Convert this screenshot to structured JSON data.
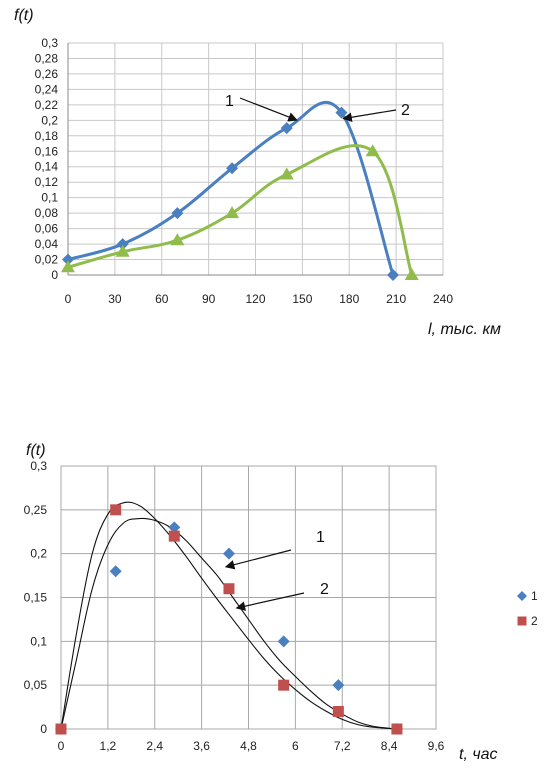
{
  "chart_data": [
    {
      "type": "line",
      "ylabel": "f(t)",
      "xlabel": "l, тыс. км",
      "xlim": [
        0,
        240
      ],
      "ylim": [
        0,
        0.3
      ],
      "x_ticks": [
        "0",
        "30",
        "60",
        "90",
        "120",
        "150",
        "180",
        "210",
        "240"
      ],
      "y_ticks": [
        "0",
        "0,02",
        "0,04",
        "0,06",
        "0,08",
        "0,1",
        "0,12",
        "0,14",
        "0,16",
        "0,18",
        "0,2",
        "0,22",
        "0,24",
        "0,26",
        "0,28",
        "0,3"
      ],
      "grid": true,
      "series": [
        {
          "name": "1",
          "color": "#4a7fc0",
          "marker": "diamond",
          "points": [
            [
              0,
              0.02
            ],
            [
              35,
              0.04
            ],
            [
              70,
              0.08
            ],
            [
              105,
              0.138
            ],
            [
              140,
              0.19
            ],
            [
              175,
              0.21
            ],
            [
              208,
              0
            ]
          ]
        },
        {
          "name": "2",
          "color": "#8fbc4b",
          "marker": "triangle",
          "points": [
            [
              0,
              0.01
            ],
            [
              35,
              0.03
            ],
            [
              70,
              0.045
            ],
            [
              105,
              0.08
            ],
            [
              140,
              0.13
            ],
            [
              195,
              0.16
            ],
            [
              220,
              0
            ]
          ]
        }
      ],
      "annotations": [
        {
          "text": "1",
          "series": 0
        },
        {
          "text": "2",
          "series": 1
        }
      ]
    },
    {
      "type": "scatter",
      "ylabel": "f(t)",
      "xlabel": "t, час",
      "xlim": [
        0,
        9.6
      ],
      "ylim": [
        0,
        0.3
      ],
      "x_ticks": [
        "0",
        "1,2",
        "2,4",
        "3,6",
        "4,8",
        "6",
        "7,2",
        "8,4",
        "9,6"
      ],
      "y_ticks": [
        "0",
        "0,05",
        "0,1",
        "0,15",
        "0,2",
        "0,25",
        "0,3"
      ],
      "grid": true,
      "series": [
        {
          "name": "1",
          "color": "#4a7fc0",
          "marker": "diamond",
          "points": [
            [
              0,
              0
            ],
            [
              1.4,
              0.18
            ],
            [
              2.9,
              0.23
            ],
            [
              4.3,
              0.2
            ],
            [
              5.7,
              0.1
            ],
            [
              7.1,
              0.05
            ],
            [
              8.6,
              0
            ]
          ]
        },
        {
          "name": "2",
          "color": "#c0504d",
          "marker": "square",
          "points": [
            [
              0,
              0
            ],
            [
              1.4,
              0.25
            ],
            [
              2.9,
              0.22
            ],
            [
              4.3,
              0.16
            ],
            [
              5.7,
              0.05
            ],
            [
              7.1,
              0.02
            ],
            [
              8.6,
              0
            ]
          ]
        }
      ],
      "fit_curves": [
        {
          "points": [
            [
              0,
              0
            ],
            [
              0.4,
              0.08
            ],
            [
              0.8,
              0.16
            ],
            [
              1.2,
              0.21
            ],
            [
              1.6,
              0.235
            ],
            [
              2.0,
              0.24
            ],
            [
              2.4,
              0.238
            ],
            [
              2.8,
              0.23
            ],
            [
              3.2,
              0.215
            ],
            [
              3.6,
              0.195
            ],
            [
              4.0,
              0.175
            ],
            [
              4.4,
              0.15
            ],
            [
              4.8,
              0.125
            ],
            [
              5.2,
              0.1
            ],
            [
              5.6,
              0.078
            ],
            [
              6.0,
              0.06
            ],
            [
              6.4,
              0.043
            ],
            [
              6.8,
              0.028
            ],
            [
              7.2,
              0.017
            ],
            [
              7.6,
              0.008
            ],
            [
              8.0,
              0.003
            ],
            [
              8.6,
              0
            ]
          ]
        },
        {
          "points": [
            [
              0,
              0
            ],
            [
              0.4,
              0.11
            ],
            [
              0.8,
              0.2
            ],
            [
              1.2,
              0.245
            ],
            [
              1.6,
              0.258
            ],
            [
              2.0,
              0.255
            ],
            [
              2.4,
              0.24
            ],
            [
              2.8,
              0.22
            ],
            [
              3.2,
              0.197
            ],
            [
              3.6,
              0.172
            ],
            [
              4.0,
              0.148
            ],
            [
              4.4,
              0.125
            ],
            [
              4.8,
              0.102
            ],
            [
              5.2,
              0.08
            ],
            [
              5.6,
              0.061
            ],
            [
              6.0,
              0.045
            ],
            [
              6.4,
              0.031
            ],
            [
              6.8,
              0.02
            ],
            [
              7.2,
              0.011
            ],
            [
              7.6,
              0.005
            ],
            [
              8.0,
              0.002
            ],
            [
              8.6,
              0
            ]
          ]
        }
      ],
      "annotations": [
        {
          "text": "1"
        },
        {
          "text": "2"
        }
      ],
      "legend": {
        "placement": "right",
        "entries": [
          "1",
          "2"
        ]
      }
    }
  ]
}
